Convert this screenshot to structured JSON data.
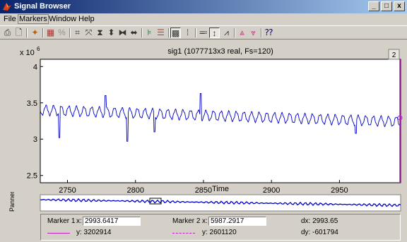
{
  "window": {
    "title": "Signal Browser",
    "minimize": "_",
    "maximize": "□",
    "close": "x"
  },
  "menu": {
    "items": [
      "File",
      "Markers",
      "Window",
      "Help"
    ]
  },
  "plot": {
    "title": "sig1 (1077713x3 real, Fs=120)",
    "exponent_base": "x 10",
    "exponent_power": "6",
    "xlabel": "Time",
    "x_ticks": [
      "2750",
      "2800",
      "2850",
      "2900",
      "2950"
    ],
    "y_ticks": [
      "4",
      "3.5",
      "3",
      "2.5"
    ],
    "panel_number": "2"
  },
  "panner": {
    "label": "Panner"
  },
  "markers": {
    "marker1": {
      "label": "Marker 1",
      "x_label": "x:",
      "x_value": "2993.6417",
      "y_text": "y: 3202914"
    },
    "marker2": {
      "label": "Marker 2",
      "x_label": "x:",
      "x_value": "5987.2917",
      "y_text": "y: 2601120"
    },
    "dx": "dx: 2993.65",
    "dy": "dy: -601794"
  },
  "chart_data": {
    "type": "line",
    "xlabel": "Time",
    "xlim": [
      2730,
      2995
    ],
    "ylim": [
      2.4,
      4.1
    ],
    "y_scale_note": "x 10^6",
    "series": [
      {
        "color": "#0000c8"
      }
    ],
    "baseline_start": 3.4,
    "baseline_end": 3.24,
    "oscillation_amplitude": 0.065,
    "oscillation_period": 5.6,
    "spikes": [
      [
        2744,
        3.02
      ],
      [
        2778,
        3.6
      ],
      [
        2794,
        2.97
      ],
      [
        2814,
        3.1
      ],
      [
        2848,
        3.63
      ],
      [
        2962,
        3.08
      ]
    ]
  },
  "colors": {
    "signal": "#0000c8",
    "marker": "#c020c0",
    "titlebar": "#0a246a"
  }
}
